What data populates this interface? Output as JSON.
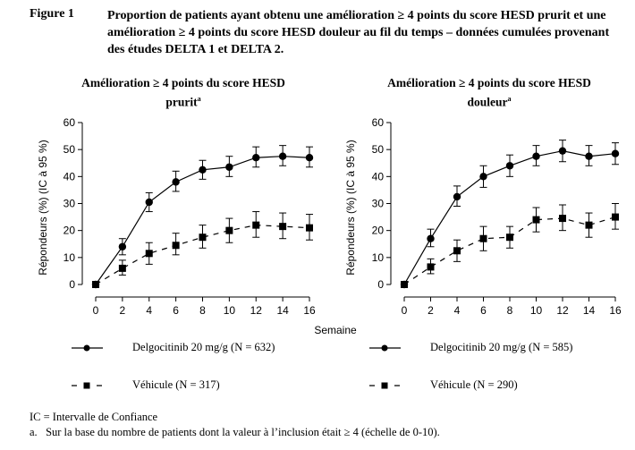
{
  "figure": {
    "label": "Figure 1",
    "title": "Proportion de patients ayant obtenu une amélioration ≥ 4 points du score HESD prurit et une amélioration ≥ 4 points du score HESD douleur au fil du temps – données cumulées provenant des études DELTA 1 et DELTA 2."
  },
  "axes": {
    "ylabel": "Répondeurs (%) (IC à 95 %)",
    "xlabel": "Semaine"
  },
  "footnotes": {
    "ic": "IC = Intervalle de Confiance",
    "a_marker": "a.",
    "a_text": "Sur la base du nombre de patients dont la valeur à l’inclusion était ≥ 4 (échelle de 0-10)."
  },
  "chart_data": [
    {
      "type": "line",
      "title": "Amélioration ≥ 4 points du score HESD prurit",
      "title_line1": "Amélioration ≥ 4 points du score HESD",
      "title_line2": "prurit",
      "title_superscript": "a",
      "xlabel": "Semaine",
      "ylabel": "Répondeurs (%) (IC à 95 %)",
      "x": [
        0,
        2,
        4,
        6,
        8,
        10,
        12,
        14,
        16
      ],
      "xlim": [
        0,
        16
      ],
      "ylim": [
        0,
        60
      ],
      "xticks": [
        "0",
        "2",
        "4",
        "6",
        "8",
        "10",
        "12",
        "14",
        "16"
      ],
      "yticks": [
        "0",
        "10",
        "20",
        "30",
        "40",
        "50",
        "60"
      ],
      "grid": false,
      "series": [
        {
          "name": "Delgocitinib 20 mg/g (N = 632)",
          "style": "solid-circle",
          "values": [
            0,
            14,
            30.5,
            38,
            42.5,
            43.5,
            47,
            47.5,
            47
          ],
          "ci_low": [
            0,
            11,
            27,
            34.5,
            39,
            40,
            43.5,
            44,
            43.5
          ],
          "ci_high": [
            0,
            17,
            34,
            42,
            46,
            47.5,
            51,
            51.5,
            51
          ]
        },
        {
          "name": "Véhicule (N = 317)",
          "style": "dashed-square",
          "values": [
            0,
            6,
            11.5,
            14.5,
            17.5,
            20,
            22,
            21.5,
            21
          ],
          "ci_low": [
            0,
            3.5,
            7.5,
            11,
            13.5,
            15.5,
            17.5,
            17,
            16.5
          ],
          "ci_high": [
            0,
            9,
            15.5,
            19,
            22,
            24.5,
            27,
            26.5,
            26
          ]
        }
      ]
    },
    {
      "type": "line",
      "title": "Amélioration ≥ 4 points du score HESD douleur",
      "title_line1": "Amélioration ≥ 4 points du score HESD",
      "title_line2": "douleur",
      "title_superscript": "a",
      "xlabel": "Semaine",
      "ylabel": "Répondeurs (%) (IC à 95 %)",
      "x": [
        0,
        2,
        4,
        6,
        8,
        10,
        12,
        14,
        16
      ],
      "xlim": [
        0,
        16
      ],
      "ylim": [
        0,
        60
      ],
      "xticks": [
        "0",
        "2",
        "4",
        "6",
        "8",
        "10",
        "12",
        "14",
        "16"
      ],
      "yticks": [
        "0",
        "10",
        "20",
        "30",
        "40",
        "50",
        "60"
      ],
      "grid": false,
      "series": [
        {
          "name": "Delgocitinib 20 mg/g (N = 585)",
          "style": "solid-circle",
          "values": [
            0,
            17,
            32.5,
            40,
            44,
            47.5,
            49.5,
            47.5,
            48.5
          ],
          "ci_low": [
            0,
            14,
            29,
            36,
            40,
            44,
            45.5,
            44,
            44.5
          ],
          "ci_high": [
            0,
            20.5,
            36.5,
            44,
            48,
            51.5,
            53.5,
            51.5,
            52.5
          ]
        },
        {
          "name": "Véhicule (N = 290)",
          "style": "dashed-square",
          "values": [
            0,
            6.5,
            12.5,
            17,
            17.5,
            24,
            24.5,
            22,
            25
          ],
          "ci_low": [
            0,
            4,
            8.5,
            12.5,
            13.5,
            19.5,
            20,
            17.5,
            20.5
          ],
          "ci_high": [
            0,
            9.5,
            16.5,
            21.5,
            21.5,
            28.5,
            29.5,
            26.5,
            30
          ]
        }
      ]
    }
  ]
}
